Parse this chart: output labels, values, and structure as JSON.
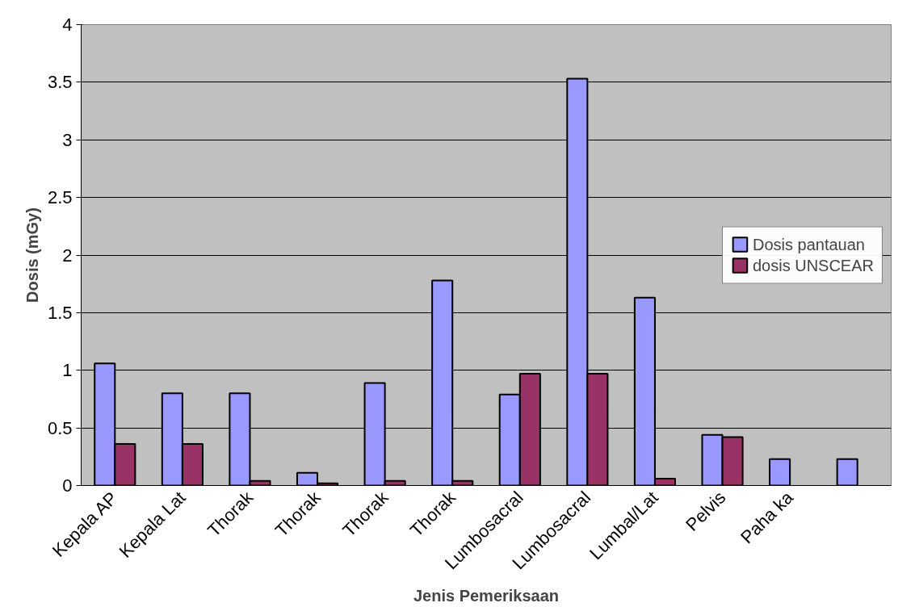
{
  "chart_data": {
    "type": "bar",
    "xlabel": "Jenis Pemeriksaan",
    "ylabel": "Dosis (mGy)",
    "categories": [
      "Kepala AP",
      "Kepala Lat",
      "Thorak",
      "Thorak",
      "Thorak",
      "Thorak",
      "Lumbosacral",
      "Lumbosacral",
      "Lumbal/Lat",
      "Pelvis",
      "Paha ka",
      null
    ],
    "series": [
      {
        "name": "Dosis pantauan",
        "color": "#9999ff",
        "values": [
          1.06,
          0.8,
          0.8,
          0.11,
          0.89,
          1.78,
          0.79,
          3.53,
          1.63,
          0.44,
          0.23,
          0.23
        ]
      },
      {
        "name": "dosis UNSCEAR",
        "color": "#993366",
        "values": [
          0.36,
          0.36,
          0.04,
          0.02,
          0.04,
          0.04,
          0.97,
          0.97,
          0.06,
          0.42,
          null,
          null
        ]
      }
    ],
    "ylim": [
      0,
      4
    ],
    "yticks": [
      0,
      0.5,
      1,
      1.5,
      2,
      2.5,
      3,
      3.5,
      4
    ],
    "grid": "y",
    "legend": "right"
  }
}
